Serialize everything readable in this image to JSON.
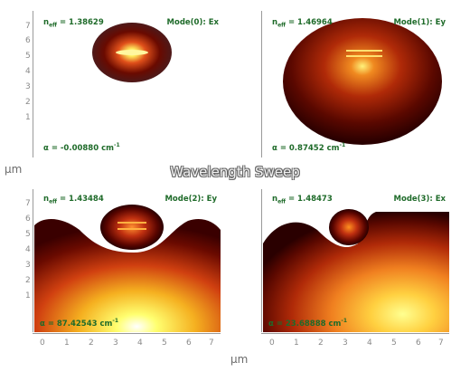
{
  "title": "Wavelength Sweep",
  "y_unit": "μm",
  "x_unit": "μm",
  "y_ticks": [
    "7",
    "6",
    "5",
    "4",
    "3",
    "2",
    "1"
  ],
  "x_ticks": [
    "0",
    "1",
    "2",
    "3",
    "4",
    "5",
    "6",
    "7"
  ],
  "colors": {
    "label": "#1f6b2a",
    "axis": "#9a9a9a",
    "hot": "#ffff60",
    "mid": "#e05010",
    "dark": "#3a0000"
  },
  "panels": [
    {
      "mode": "Mode(0): Ex",
      "neff_label": "n",
      "neff_sub": "eff",
      "neff_value": "= 1.38629",
      "loss_prefix": "α",
      "loss_value": "= -0.00880 cm",
      "loss_exp": "-1"
    },
    {
      "mode": "Mode(1): Ey",
      "neff_label": "n",
      "neff_sub": "eff",
      "neff_value": "= 1.46964",
      "loss_prefix": "α",
      "loss_value": "= 0.87452 cm",
      "loss_exp": "-1"
    },
    {
      "mode": "Mode(2): Ey",
      "neff_label": "n",
      "neff_sub": "eff",
      "neff_value": "= 1.43484",
      "loss_prefix": "α",
      "loss_value": "= 87.42543 cm",
      "loss_exp": "-1"
    },
    {
      "mode": "Mode(3): Ex",
      "neff_label": "n",
      "neff_sub": "eff",
      "neff_value": "= 1.48473",
      "loss_prefix": "α",
      "loss_value": "= 23.68888 cm",
      "loss_exp": "-1"
    }
  ]
}
